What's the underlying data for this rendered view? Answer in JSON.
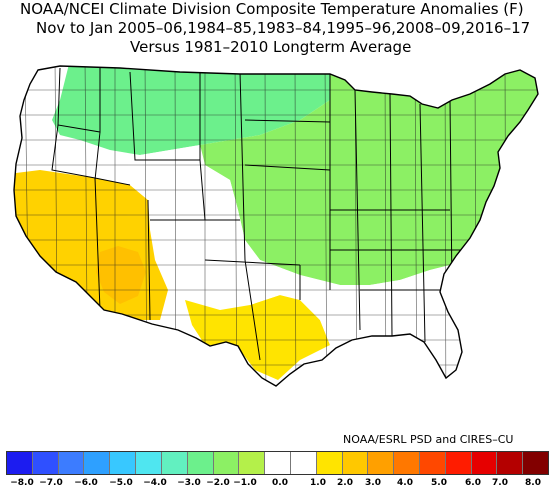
{
  "title": {
    "line1": "NOAA/NCEI Climate Division Composite Temperature Anomalies (F)",
    "line2": "Nov to Jan  2005–06,1984–85,1983–84,1995–96,2008–09,2016–17",
    "line3": "Versus 1981–2010 Longterm Average"
  },
  "credit": "NOAA/ESRL PSD and CIRES–CU",
  "map": {
    "region": "contiguous-united-states",
    "regions": [
      {
        "id": "southwest-core",
        "anomaly_f": 1.5
      },
      {
        "id": "california-great-basin",
        "anomaly_f": 1.0
      },
      {
        "id": "texas-south",
        "anomaly_f": 0.5
      },
      {
        "id": "rockies-plains-neutral",
        "anomaly_f": 0.0
      },
      {
        "id": "southeast-neutral",
        "anomaly_f": 0.0
      },
      {
        "id": "northwest-neutral",
        "anomaly_f": 0.0
      },
      {
        "id": "north-central-cool",
        "anomaly_f": -1.0
      },
      {
        "id": "midwest-northeast-cool",
        "anomaly_f": -0.5
      }
    ]
  },
  "colorbar": {
    "colors": [
      "#1c1cf0",
      "#2f50ff",
      "#3c7cff",
      "#2ea0ff",
      "#38c8ff",
      "#4fe6f0",
      "#62f0c0",
      "#6cf08c",
      "#8cf064",
      "#b4f04a",
      "#ffffff",
      "#ffffff",
      "#ffe400",
      "#ffc800",
      "#ffa000",
      "#ff7800",
      "#ff4800",
      "#ff1c00",
      "#e60000",
      "#b40000",
      "#820000"
    ],
    "tick_labels": [
      "−8.0",
      "−7.0",
      "−6.0",
      "−5.0",
      "−4.0",
      "−3.0",
      "−2.0",
      "−1.0",
      "0.0",
      "1.0",
      "2.0",
      "3.0",
      "4.0",
      "5.0",
      "6.0",
      "7.0",
      "8.0"
    ]
  }
}
